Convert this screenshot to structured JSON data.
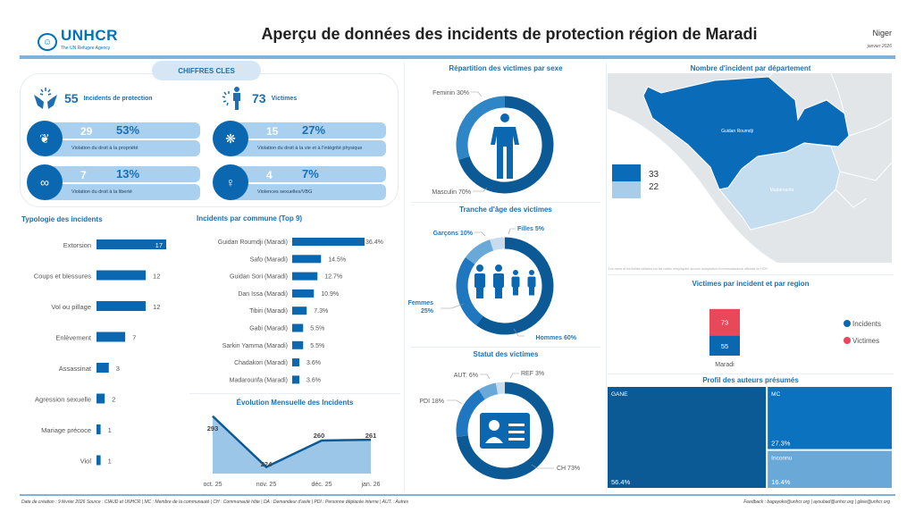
{
  "header": {
    "logo_text": "UNHCR",
    "logo_sub": "The UN Refugee Agency",
    "title": "Aperçu de données des incidents de protection région de Maradi",
    "country": "Niger",
    "date": "janvier 2026"
  },
  "kpi": {
    "section_label": "CHIFFRES CLES",
    "incidents": {
      "value": "55",
      "label": "Incidents de protection"
    },
    "victims": {
      "value": "73",
      "label": "Victimes"
    },
    "cards": [
      {
        "count": "29",
        "pct": "53%",
        "label": "Violation du droit à la propriété",
        "icon": "hands-family-icon"
      },
      {
        "count": "15",
        "pct": "27%",
        "label": "Violation du droit à la vie et à l'intégrité physique",
        "icon": "hands-violence-icon"
      },
      {
        "count": "7",
        "pct": "13%",
        "label": "Violation du droit à la liberté",
        "icon": "hands-handcuffs-icon"
      },
      {
        "count": "4",
        "pct": "7%",
        "label": "Violences sexuelles/VBG",
        "icon": "woman-violence-icon"
      }
    ]
  },
  "chart_data": [
    {
      "id": "typologie",
      "type": "bar",
      "orientation": "horizontal",
      "title": "Typologie des incidents",
      "categories": [
        "Extorsion",
        "Coups et blessures",
        "Vol ou pillage",
        "Enlèvement",
        "Assassinat",
        "Agression sexuelle",
        "Mariage précoce",
        "Viol"
      ],
      "values": [
        17,
        12,
        12,
        7,
        3,
        2,
        1,
        1
      ]
    },
    {
      "id": "communes",
      "type": "bar",
      "orientation": "horizontal",
      "title": "Incidents par commune (Top 9)",
      "categories": [
        "Guidan Roumdji (Maradi)",
        "Safo (Maradi)",
        "Guidan Sori (Maradi)",
        "Dan Issa (Maradi)",
        "Tibiri (Maradi)",
        "Gabi (Maradi)",
        "Sarkin Yamma (Maradi)",
        "Chadakori (Maradi)",
        "Madarounfa (Maradi)"
      ],
      "values": [
        36.4,
        14.5,
        12.7,
        10.9,
        7.3,
        5.5,
        5.5,
        3.6,
        3.6
      ],
      "labels": [
        "36.4%",
        "14.5%",
        "12.7%",
        "10.9%",
        "7.3%",
        "5.5%",
        "5.5%",
        "3.6%",
        "3.6%"
      ]
    },
    {
      "id": "evolution",
      "type": "area",
      "title": "Évolution Mensuelle des Incidents",
      "x": [
        "oct. 25",
        "nov. 25",
        "déc. 25",
        "jan. 26"
      ],
      "values": [
        293,
        224,
        260,
        261
      ],
      "labels": [
        "293",
        "224",
        "260",
        "261"
      ]
    },
    {
      "id": "sexe",
      "type": "pie",
      "title": "Répartition des victimes par sexe",
      "categories": [
        "Masculin",
        "Feminin"
      ],
      "values": [
        70,
        30
      ],
      "labels": [
        "Masculin 70%",
        "Feminin 30%"
      ],
      "colors": [
        "#0b5a96",
        "#2f86c6"
      ]
    },
    {
      "id": "age",
      "type": "pie",
      "title": "Tranche d'âge des victimes",
      "categories": [
        "Hommes",
        "Femmes",
        "Garçons",
        "Filles"
      ],
      "values": [
        60,
        25,
        10,
        5
      ],
      "labels": [
        "Hommes 60%",
        "Femmes 25%",
        "Garçons 10%",
        "Filles 5%"
      ],
      "colors": [
        "#0b5a96",
        "#1f77c0",
        "#6aa8d8",
        "#c7ddef"
      ]
    },
    {
      "id": "statut",
      "type": "pie",
      "title": "Statut des victimes",
      "categories": [
        "CH",
        "PDI",
        "AUT.",
        "REF"
      ],
      "values": [
        73,
        18,
        6,
        3
      ],
      "labels": [
        "CH 73%",
        "PDI 18%",
        "AUT. 6%",
        "REF 3%"
      ],
      "colors": [
        "#0b5a96",
        "#1f77c0",
        "#6aa8d8",
        "#c7ddef"
      ]
    },
    {
      "id": "region",
      "type": "bar",
      "stacked": true,
      "title": "Victimes par incident et par region",
      "categories": [
        "Maradi"
      ],
      "series": [
        {
          "name": "Incidents",
          "values": [
            55
          ],
          "color": "#0a67b0"
        },
        {
          "name": "Victimes",
          "values": [
            73
          ],
          "color": "#e9485a"
        }
      ]
    },
    {
      "id": "auteurs",
      "type": "heatmap",
      "subtype": "treemap",
      "title": "Profil des auteurs présumés",
      "categories": [
        "GANE",
        "MC",
        "Inconnu"
      ],
      "values": [
        56.4,
        27.3,
        16.4
      ],
      "labels": [
        "56.4%",
        "27.3%",
        "16.4%"
      ],
      "colors": [
        "#0b5a96",
        "#0a72bf",
        "#6aa8d8"
      ]
    }
  ],
  "map": {
    "title": "Nombre d'incident par département",
    "regions": [
      {
        "name": "Guidan Roumdji",
        "value": 33,
        "color": "#0a6cb8"
      },
      {
        "name": "Madarounfa",
        "value": 22,
        "color": "#c4ddef"
      }
    ],
    "legend": [
      "33",
      "22"
    ],
    "disclaimer": "Les noms et les limites utilisées sur les cartes n'impliquent aucune acceptation ni reconnaissance officielle du HCR"
  },
  "footer": {
    "left": "Date de création : 9 février 2026   Source : CIAUD et UNHCR    |  MC : Membre de la communauté  |  CH : Communauté hôte  |  DA : Demandeur d'asile  |  PDI : Personne déplacée interne  |  AUT. : Autres",
    "right": "Feedback : bagayoko@unhcr.org | ayoubad@unhcr.org | gleie@unhcr.org"
  }
}
